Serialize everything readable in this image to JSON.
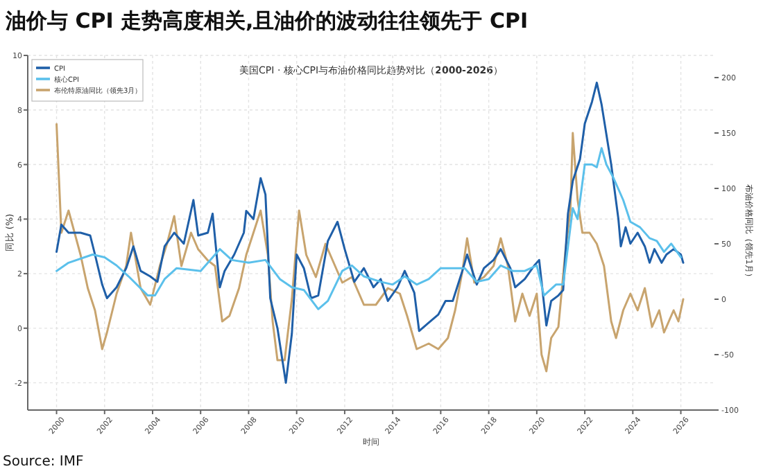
{
  "chart_data": {
    "type": "line",
    "title": "油价与 CPI 走势高度相关,且油价的波动往往领先于 CPI",
    "subtitle": "美国CPI · 核心CPI与布油价格同比趋势对比（**2000-2026**）",
    "xlabel": "时间",
    "ylabel": "同比 (%)",
    "y2label": "布油价格同比（领先1月）",
    "xlim": [
      1998.8,
      2027.4
    ],
    "xticks": [
      2000,
      2002,
      2004,
      2006,
      2008,
      2010,
      2012,
      2014,
      2016,
      2018,
      2020,
      2022,
      2024,
      2026
    ],
    "ylim": [
      -3,
      10
    ],
    "yticks": [
      -2,
      0,
      2,
      4,
      6,
      8,
      10
    ],
    "y2lim": [
      -100,
      220
    ],
    "y2ticks": [
      -100,
      -50,
      0,
      50,
      100,
      150,
      200
    ],
    "grid": true,
    "legend": "top left",
    "annotations": [
      "Source: IMF"
    ],
    "series": [
      {
        "name": "CPI",
        "color": "#1f5fa8",
        "x": [
          2000.0,
          2000.2,
          2000.5,
          2001.0,
          2001.4,
          2001.6,
          2001.9,
          2002.1,
          2002.5,
          2002.9,
          2003.2,
          2003.5,
          2003.9,
          2004.2,
          2004.5,
          2004.9,
          2005.3,
          2005.7,
          2005.9,
          2006.3,
          2006.5,
          2006.8,
          2007.0,
          2007.4,
          2007.8,
          2007.9,
          2008.2,
          2008.5,
          2008.7,
          2008.9,
          2009.2,
          2009.55,
          2009.8,
          2010.0,
          2010.3,
          2010.6,
          2010.9,
          2011.3,
          2011.7,
          2012.0,
          2012.4,
          2012.8,
          2013.2,
          2013.5,
          2013.8,
          2014.2,
          2014.5,
          2014.9,
          2015.1,
          2015.5,
          2015.9,
          2016.2,
          2016.5,
          2016.9,
          2017.1,
          2017.5,
          2017.8,
          2018.2,
          2018.5,
          2018.9,
          2019.1,
          2019.5,
          2019.9,
          2020.1,
          2020.4,
          2020.6,
          2020.9,
          2021.1,
          2021.3,
          2021.5,
          2021.8,
          2022.0,
          2022.3,
          2022.5,
          2022.7,
          2022.9,
          2023.1,
          2023.4,
          2023.5,
          2023.7,
          2023.9,
          2024.2,
          2024.5,
          2024.7,
          2024.9,
          2025.2,
          2025.4,
          2025.7,
          2026.0,
          2026.1
        ],
        "values": [
          2.8,
          3.8,
          3.5,
          3.5,
          3.4,
          2.7,
          1.6,
          1.1,
          1.5,
          2.2,
          3.0,
          2.1,
          1.9,
          1.7,
          3.0,
          3.5,
          3.1,
          4.7,
          3.4,
          3.5,
          4.2,
          1.5,
          2.1,
          2.7,
          3.5,
          4.3,
          4.0,
          5.5,
          4.9,
          1.1,
          0.0,
          -2.0,
          -0.2,
          2.7,
          2.2,
          1.1,
          1.2,
          3.2,
          3.9,
          2.9,
          1.7,
          2.2,
          1.5,
          1.8,
          1.0,
          1.5,
          2.1,
          1.3,
          -0.1,
          0.2,
          0.5,
          1.0,
          1.0,
          2.1,
          2.7,
          1.6,
          2.2,
          2.5,
          2.9,
          2.2,
          1.5,
          1.8,
          2.3,
          2.5,
          0.1,
          1.0,
          1.2,
          1.4,
          4.2,
          5.4,
          6.2,
          7.5,
          8.3,
          9.0,
          8.2,
          7.1,
          6.0,
          4.0,
          3.0,
          3.7,
          3.1,
          3.5,
          3.0,
          2.4,
          2.9,
          2.4,
          2.7,
          2.9,
          2.7,
          2.4
        ]
      },
      {
        "name": "核心CPI",
        "color": "#5bc0eb",
        "x": [
          2000.0,
          2000.5,
          2001.5,
          2002.0,
          2002.5,
          2003.0,
          2003.8,
          2004.1,
          2004.5,
          2005.0,
          2006.0,
          2006.8,
          2007.3,
          2008.0,
          2008.7,
          2009.3,
          2009.8,
          2010.3,
          2010.9,
          2011.3,
          2011.9,
          2012.3,
          2012.8,
          2013.5,
          2014.0,
          2014.5,
          2015.0,
          2015.5,
          2016.0,
          2016.5,
          2017.0,
          2017.5,
          2018.0,
          2018.5,
          2019.0,
          2019.5,
          2020.0,
          2020.3,
          2020.8,
          2021.1,
          2021.3,
          2021.5,
          2021.7,
          2022.0,
          2022.3,
          2022.5,
          2022.7,
          2022.9,
          2023.2,
          2023.6,
          2023.9,
          2024.3,
          2024.7,
          2025.0,
          2025.3,
          2025.6,
          2026.0
        ],
        "values": [
          2.1,
          2.4,
          2.7,
          2.6,
          2.3,
          1.9,
          1.2,
          1.2,
          1.8,
          2.2,
          2.1,
          2.9,
          2.5,
          2.4,
          2.5,
          1.8,
          1.5,
          1.4,
          0.7,
          1.0,
          2.1,
          2.3,
          1.9,
          1.7,
          1.6,
          1.9,
          1.6,
          1.8,
          2.2,
          2.2,
          2.2,
          1.7,
          1.8,
          2.3,
          2.1,
          2.1,
          2.3,
          1.2,
          1.6,
          1.6,
          3.0,
          4.4,
          4.0,
          6.0,
          6.0,
          5.9,
          6.6,
          6.0,
          5.5,
          4.7,
          3.9,
          3.7,
          3.3,
          3.2,
          2.8,
          3.1,
          2.6
        ]
      },
      {
        "name": "布伦特原油同比（领先3月）",
        "color": "#c8a46e",
        "axis": "y2",
        "x": [
          2000.0,
          2000.2,
          2000.5,
          2001.0,
          2001.3,
          2001.6,
          2001.9,
          2002.1,
          2002.5,
          2002.9,
          2003.1,
          2003.5,
          2003.9,
          2004.3,
          2004.6,
          2004.9,
          2005.2,
          2005.6,
          2005.9,
          2006.3,
          2006.6,
          2006.9,
          2007.2,
          2007.6,
          2007.9,
          2008.2,
          2008.5,
          2008.8,
          2009.0,
          2009.2,
          2009.5,
          2009.8,
          2010.1,
          2010.4,
          2010.8,
          2011.2,
          2011.5,
          2011.9,
          2012.3,
          2012.8,
          2013.3,
          2013.8,
          2014.3,
          2014.6,
          2015.0,
          2015.5,
          2015.9,
          2016.3,
          2016.6,
          2016.9,
          2017.1,
          2017.4,
          2017.8,
          2018.2,
          2018.5,
          2018.8,
          2019.1,
          2019.4,
          2019.7,
          2020.0,
          2020.2,
          2020.4,
          2020.6,
          2020.9,
          2021.2,
          2021.4,
          2021.5,
          2021.7,
          2021.9,
          2022.2,
          2022.5,
          2022.8,
          2023.1,
          2023.3,
          2023.6,
          2023.9,
          2024.2,
          2024.5,
          2024.8,
          2025.1,
          2025.3,
          2025.7,
          2025.9,
          2026.1
        ],
        "values": [
          158,
          60,
          80,
          40,
          10,
          -10,
          -45,
          -30,
          5,
          30,
          60,
          10,
          -5,
          30,
          50,
          75,
          30,
          60,
          45,
          35,
          30,
          -20,
          -15,
          10,
          40,
          60,
          80,
          40,
          -20,
          -55,
          -55,
          0,
          80,
          40,
          20,
          50,
          35,
          15,
          20,
          -5,
          -5,
          10,
          5,
          -15,
          -45,
          -40,
          -45,
          -35,
          -10,
          25,
          55,
          15,
          20,
          30,
          55,
          30,
          -20,
          5,
          -15,
          5,
          -50,
          -65,
          -35,
          -25,
          45,
          80,
          150,
          90,
          60,
          60,
          50,
          30,
          -20,
          -35,
          -10,
          5,
          -10,
          10,
          -25,
          -10,
          -30,
          -10,
          -20,
          0
        ]
      }
    ]
  }
}
